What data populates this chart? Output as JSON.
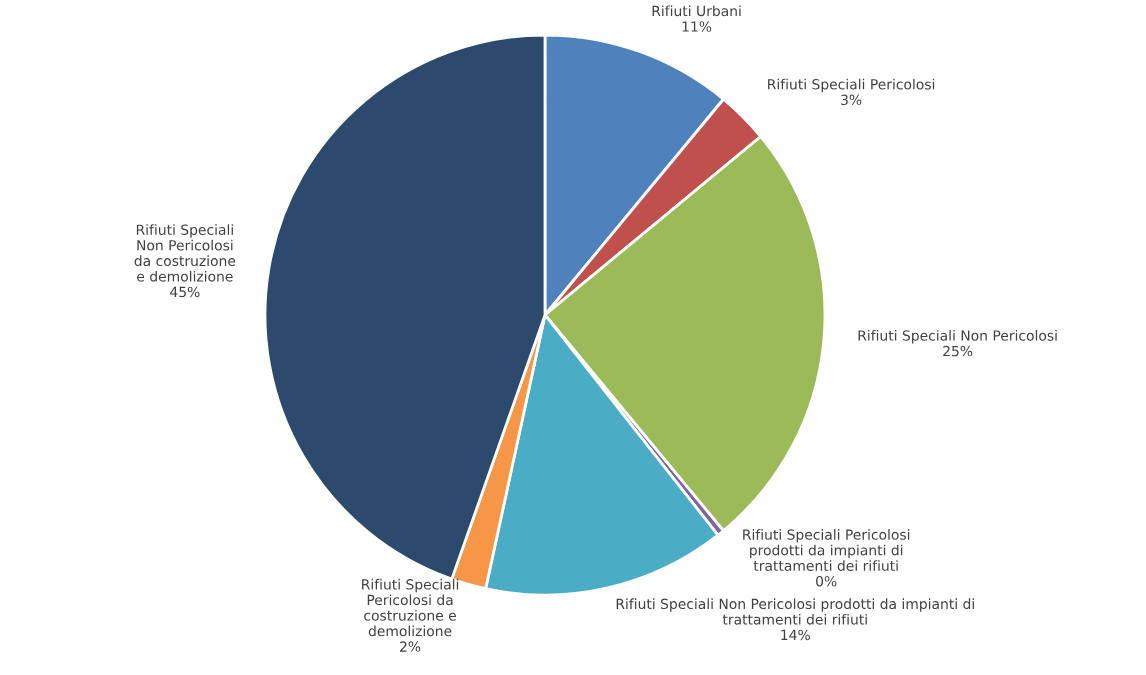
{
  "chart_data": {
    "type": "pie",
    "categories": [
      "Rifiuti Urbani",
      "Rifiuti Speciali Pericolosi",
      "Rifiuti Speciali Non Pericolosi",
      "Rifiuti Speciali Pericolosi\nprodotti da impianti di\ntrattamenti dei rifiuti",
      "Rifiuti Speciali Non Pericolosi prodotti da impianti di\ntrattamenti dei rifiuti",
      "Rifiuti Speciali\nPericolosi da\ncostruzione e\ndemolizione",
      "Rifiuti Speciali\nNon Pericolosi\nda costruzione\ne demolizione"
    ],
    "values": [
      11,
      3,
      25,
      0.4,
      14,
      2,
      44.6
    ],
    "value_labels": [
      "11%",
      "3%",
      "25%",
      "0%",
      "14%",
      "2%",
      "45%"
    ],
    "colors": [
      "#4f81bd",
      "#c0504d",
      "#9bbb59",
      "#8064a2",
      "#4bacc6",
      "#f79646",
      "#2c4a6e"
    ]
  }
}
